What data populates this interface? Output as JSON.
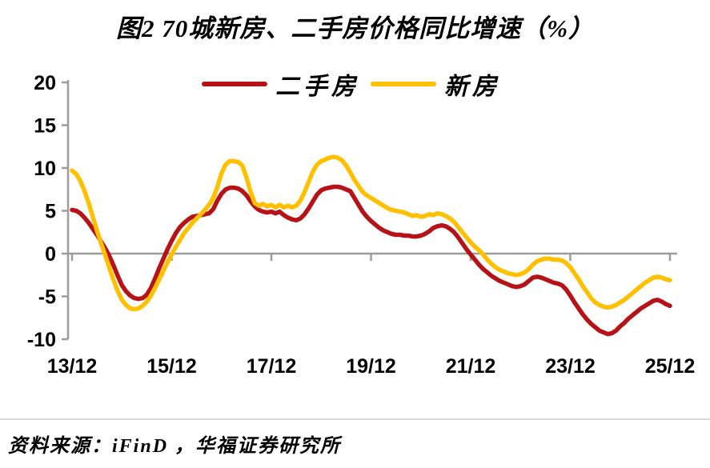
{
  "figure": {
    "title": "图2 70城新房、二手房价格同比增速（%）",
    "source": "资料来源：iFinD ，华福证券研究所"
  },
  "colors": {
    "secondhand": "#B51318",
    "new": "#FFC000",
    "axis": "#9C9C9C",
    "divider": "#D9D9D9",
    "text": "#000000"
  },
  "legend": [
    {
      "key": "secondhand",
      "label": "二手房",
      "color": "#B51318"
    },
    {
      "key": "new",
      "label": "新房",
      "color": "#FFC000"
    }
  ],
  "chart_data": {
    "type": "line",
    "title": "图2 70城新房、二手房价格同比增速（%）",
    "x_unit": "month",
    "x_start": "2013/12",
    "x_end": "2025/12",
    "x_tick_labels": [
      "13/12",
      "15/12",
      "17/12",
      "19/12",
      "21/12",
      "23/12",
      "25/12"
    ],
    "y_ticks": [
      20,
      15,
      10,
      5,
      0,
      -5,
      -10
    ],
    "ylim": [
      -10,
      20
    ],
    "grid": false,
    "legend_position": "top-center",
    "series": [
      {
        "name": "二手房",
        "color": "#B51318",
        "values": [
          5.1,
          5.0,
          4.7,
          4.2,
          3.6,
          2.9,
          2.2,
          1.4,
          0.6,
          -0.3,
          -1.4,
          -2.6,
          -3.7,
          -4.4,
          -4.9,
          -5.2,
          -5.3,
          -5.2,
          -4.8,
          -4.0,
          -2.9,
          -1.7,
          -0.6,
          0.5,
          1.5,
          2.4,
          3.1,
          3.6,
          4.0,
          4.3,
          4.4,
          4.5,
          4.6,
          4.7,
          5.2,
          6.2,
          7.0,
          7.5,
          7.7,
          7.7,
          7.6,
          7.3,
          6.8,
          6.1,
          5.5,
          5.1,
          4.9,
          4.8,
          4.9,
          4.7,
          4.9,
          4.5,
          4.2,
          4.0,
          3.9,
          4.1,
          4.6,
          5.3,
          6.1,
          6.9,
          7.4,
          7.6,
          7.7,
          7.8,
          7.8,
          7.7,
          7.5,
          7.3,
          6.5,
          5.7,
          4.9,
          4.3,
          3.8,
          3.4,
          3.0,
          2.7,
          2.5,
          2.3,
          2.2,
          2.2,
          2.1,
          2.1,
          2.0,
          2.0,
          2.1,
          2.3,
          2.6,
          3.0,
          3.2,
          3.3,
          3.2,
          2.9,
          2.5,
          1.9,
          1.2,
          0.5,
          -0.1,
          -0.7,
          -1.3,
          -1.8,
          -2.2,
          -2.6,
          -2.9,
          -3.2,
          -3.4,
          -3.6,
          -3.8,
          -3.9,
          -3.8,
          -3.6,
          -3.2,
          -2.8,
          -2.7,
          -2.8,
          -3.0,
          -3.2,
          -3.4,
          -3.5,
          -3.7,
          -4.2,
          -4.9,
          -5.7,
          -6.4,
          -7.1,
          -7.7,
          -8.2,
          -8.6,
          -9.0,
          -9.2,
          -9.4,
          -9.3,
          -9.0,
          -8.5,
          -8.1,
          -7.6,
          -7.2,
          -6.8,
          -6.4,
          -6.1,
          -5.8,
          -5.5,
          -5.4,
          -5.6,
          -5.9,
          -6.1
        ]
      },
      {
        "name": "新房",
        "color": "#FFC000",
        "values": [
          9.7,
          9.3,
          8.5,
          7.3,
          5.9,
          4.3,
          2.7,
          1.2,
          -0.2,
          -1.7,
          -3.1,
          -4.4,
          -5.4,
          -6.0,
          -6.4,
          -6.5,
          -6.4,
          -6.1,
          -5.6,
          -4.9,
          -4.0,
          -3.0,
          -2.0,
          -1.0,
          -0.1,
          0.8,
          1.6,
          2.4,
          3.0,
          3.6,
          4.1,
          4.6,
          5.1,
          5.7,
          6.5,
          7.8,
          9.4,
          10.4,
          10.8,
          10.8,
          10.7,
          10.3,
          8.9,
          7.2,
          5.9,
          5.6,
          5.8,
          5.5,
          5.7,
          5.4,
          5.7,
          5.4,
          5.6,
          5.4,
          5.6,
          6.2,
          7.2,
          8.4,
          9.6,
          10.4,
          10.8,
          11.0,
          11.2,
          11.3,
          11.2,
          10.9,
          10.3,
          9.5,
          8.6,
          7.9,
          7.2,
          6.8,
          6.5,
          6.2,
          5.9,
          5.6,
          5.3,
          5.1,
          5.0,
          4.9,
          4.8,
          4.6,
          4.4,
          4.5,
          4.3,
          4.4,
          4.6,
          4.5,
          4.7,
          4.6,
          4.4,
          4.1,
          3.7,
          3.1,
          2.5,
          1.9,
          1.3,
          0.8,
          0.4,
          -0.1,
          -0.7,
          -1.2,
          -1.6,
          -1.9,
          -2.1,
          -2.3,
          -2.4,
          -2.5,
          -2.4,
          -2.2,
          -1.8,
          -1.3,
          -0.9,
          -0.7,
          -0.6,
          -0.6,
          -0.7,
          -0.7,
          -0.8,
          -1.1,
          -1.6,
          -2.3,
          -3.0,
          -3.8,
          -4.5,
          -5.2,
          -5.7,
          -6.0,
          -6.2,
          -6.3,
          -6.2,
          -6.0,
          -5.7,
          -5.4,
          -5.0,
          -4.6,
          -4.2,
          -3.8,
          -3.4,
          -3.1,
          -2.8,
          -2.7,
          -2.8,
          -3.0,
          -3.1
        ]
      }
    ]
  }
}
